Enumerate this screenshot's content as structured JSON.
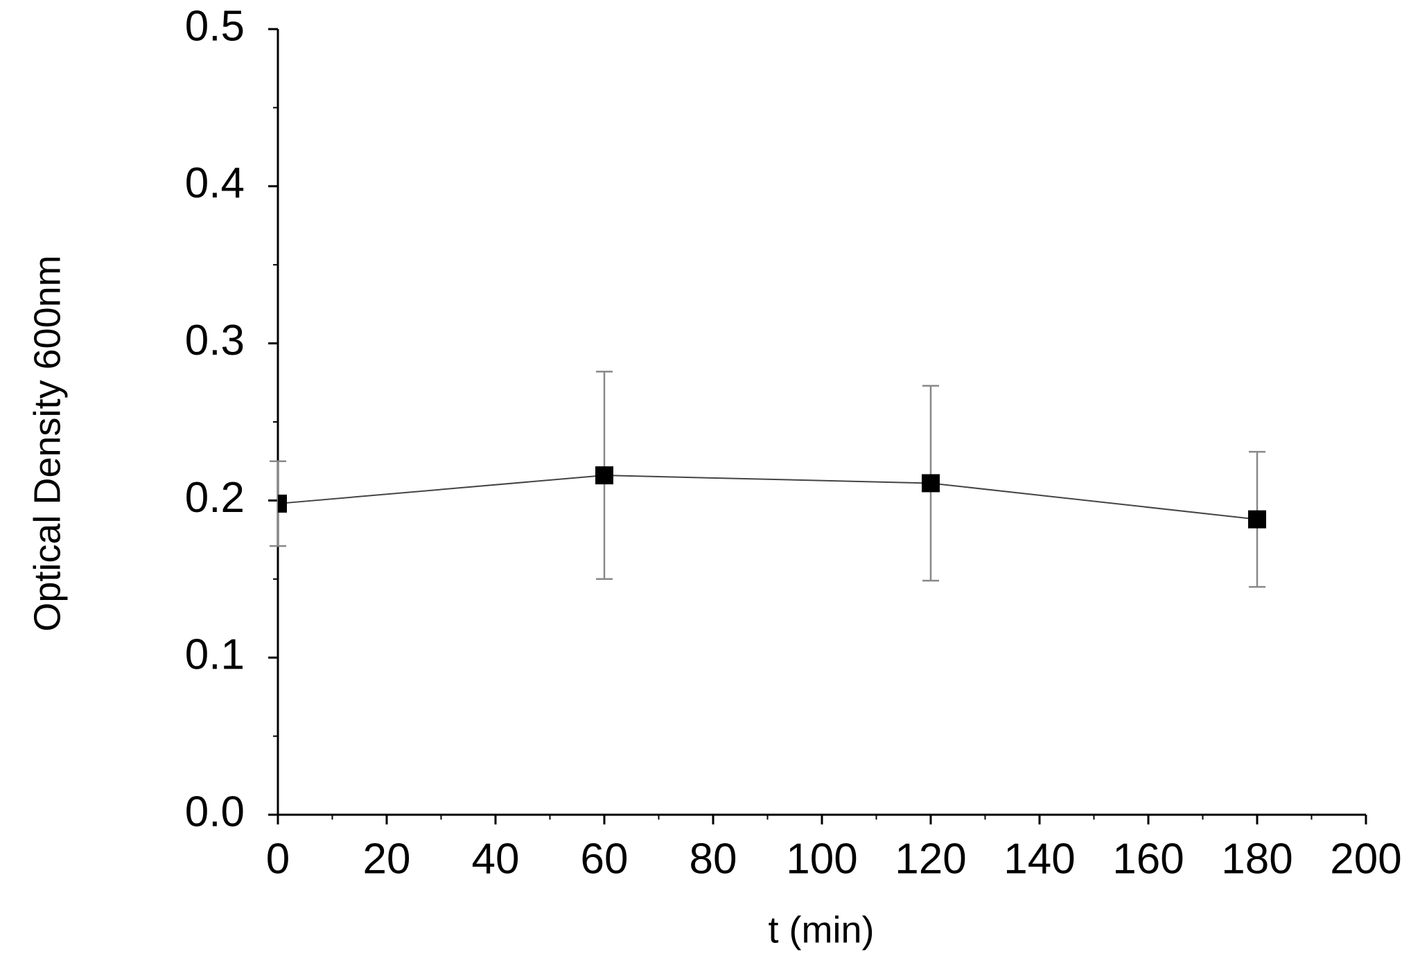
{
  "chart_data": {
    "type": "line",
    "x": [
      0,
      60,
      120,
      180
    ],
    "series": [
      {
        "color": "#000000",
        "values": [
          0.198,
          0.216,
          0.211,
          0.188
        ],
        "errors": [
          0.027,
          0.066,
          0.062,
          0.043
        ]
      }
    ],
    "xlabel": "t (min)",
    "ylabel": "Optical Density 600nm",
    "xlim": [
      0,
      200
    ],
    "xticks": [
      0,
      20,
      40,
      60,
      80,
      100,
      120,
      140,
      160,
      180,
      200
    ],
    "xminorticks": [
      10,
      30,
      50,
      70,
      90,
      110,
      130,
      150,
      170,
      190
    ],
    "ylim": [
      0,
      0.5
    ],
    "yticks": [
      {
        "value": 0,
        "label": "0.0"
      },
      0.1,
      0.2,
      0.3,
      0.4,
      0.5
    ],
    "yminorticks": [
      0.05,
      0.15,
      0.25,
      0.35,
      0.45
    ],
    "grid": false
  }
}
